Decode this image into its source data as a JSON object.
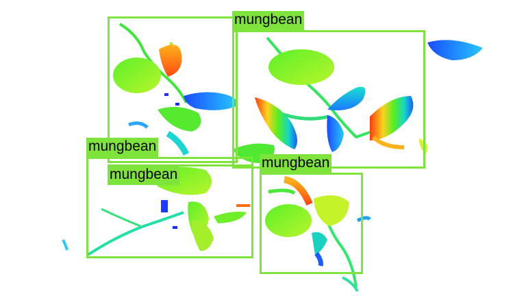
{
  "image": {
    "background": "#ffffff",
    "box_color": "#7ee33a",
    "content": "depth-colored plant point cloud with mungbean detections"
  },
  "detections": [
    {
      "label": "mungbean"
    },
    {
      "label": "mungbean"
    },
    {
      "label": "mungbean"
    },
    {
      "label": "mungbean"
    },
    {
      "label": "mungbean"
    }
  ]
}
